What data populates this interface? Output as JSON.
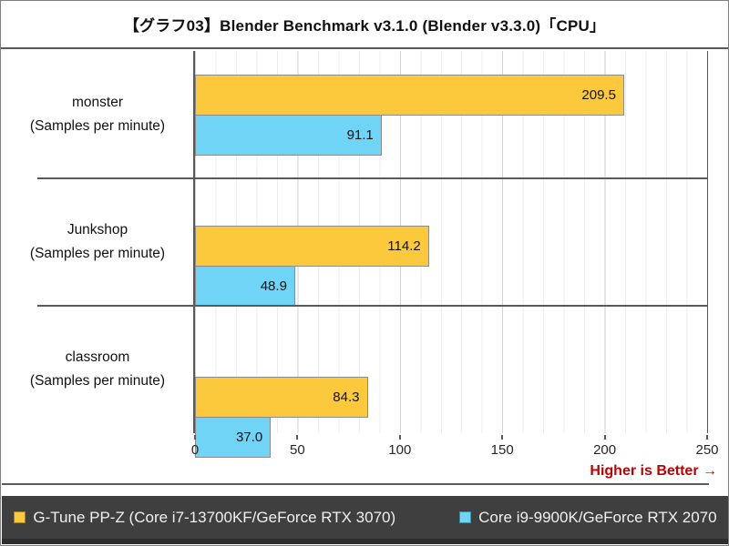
{
  "note": "Higher is Better →",
  "chart_data": {
    "type": "bar",
    "orientation": "horizontal",
    "title": "【グラフ03】Blender Benchmark v3.1.0 (Blender v3.3.0)「CPU」",
    "categories": [
      "monster",
      "Junkshop",
      "classroom"
    ],
    "category_sublabel": "(Samples per minute)",
    "series": [
      {
        "name": "G-Tune PP-Z (Core i7-13700KF/GeForce RTX 3070)",
        "color": "#fcc93d",
        "values": [
          209.5,
          114.2,
          84.3
        ]
      },
      {
        "name": "Core i9-9900K/GeForce RTX 2070",
        "color": "#70d4f6",
        "values": [
          91.1,
          48.9,
          37.0
        ]
      }
    ],
    "xlim": [
      0,
      250
    ],
    "x_ticks": [
      0,
      50,
      100,
      150,
      200,
      250
    ],
    "minor_grid_step": 10,
    "major_grid_step": 50,
    "grid": true,
    "value_labels": true,
    "legend_position": "bottom"
  },
  "colors": {
    "note_red": "#c00000",
    "legend_background": "#3f3f3f",
    "axis_line": "#595959",
    "bar_border": "#8c8c8c",
    "grid_major": "#d2d2d2",
    "grid_minor": "#ededed"
  }
}
